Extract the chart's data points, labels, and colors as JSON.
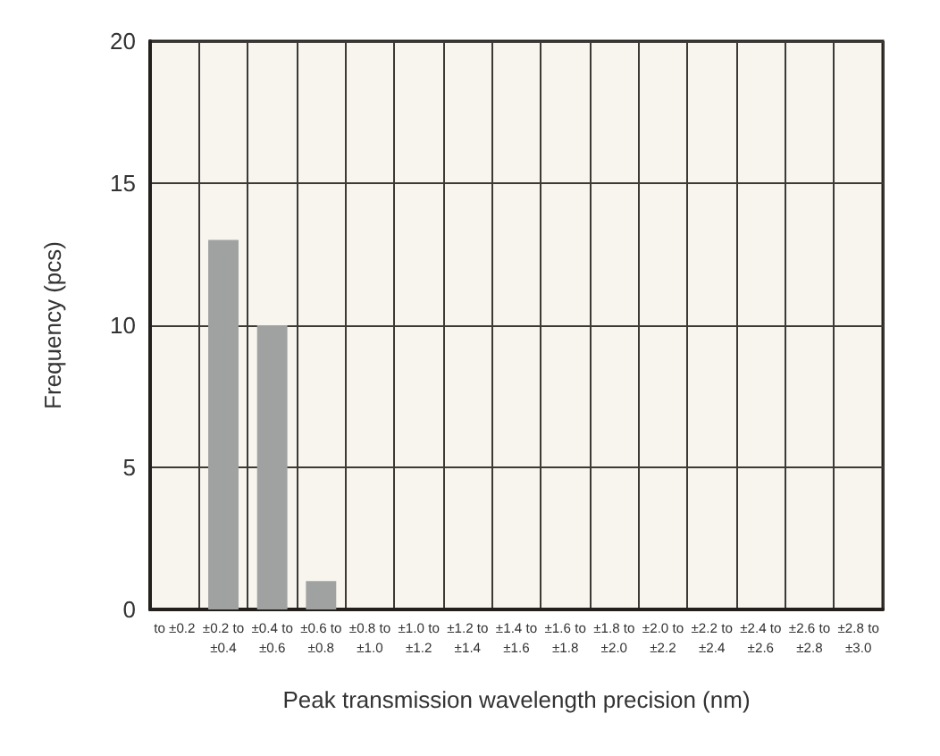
{
  "chart_data": {
    "type": "bar",
    "xlabel": "Peak transmission wavelength precision (nm)",
    "ylabel": "Frequency (pcs)",
    "categories": [
      "to ±0.2",
      "±0.2 to\n±0.4",
      "±0.4 to\n±0.6",
      "±0.6 to\n±0.8",
      "±0.8 to\n±1.0",
      "±1.0 to\n±1.2",
      "±1.2 to\n±1.4",
      "±1.4 to\n±1.6",
      "±1.6 to\n±1.8",
      "±1.8 to\n±2.0",
      "±2.0 to\n±2.2",
      "±2.2 to\n±2.4",
      "±2.4 to\n±2.6",
      "±2.6 to\n±2.8",
      "±2.8 to\n±3.0"
    ],
    "values": [
      0,
      13,
      10,
      1,
      0,
      0,
      0,
      0,
      0,
      0,
      0,
      0,
      0,
      0,
      0
    ],
    "color": "#a0a2a2",
    "ylim": [
      0,
      20
    ],
    "yticks": [
      0,
      5,
      10,
      15,
      20
    ],
    "grid": true
  }
}
